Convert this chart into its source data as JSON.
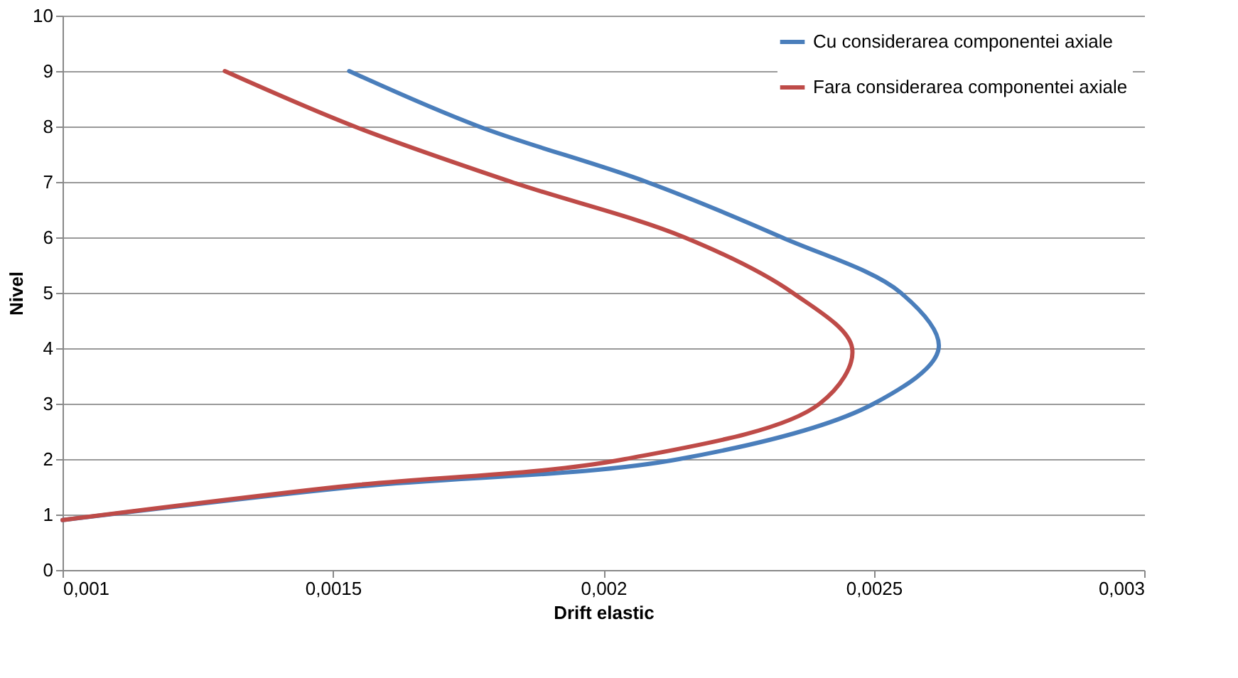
{
  "chart_data": {
    "type": "line",
    "xlabel": "Drift elastic",
    "ylabel": "Nivel",
    "xlim": [
      0.001,
      0.003
    ],
    "xticks": [
      {
        "value": 0.001,
        "label": "0,001"
      },
      {
        "value": 0.0015,
        "label": "0,0015"
      },
      {
        "value": 0.002,
        "label": "0,002"
      },
      {
        "value": 0.0025,
        "label": "0,0025"
      },
      {
        "value": 0.003,
        "label": "0,003"
      }
    ],
    "ylim": [
      0,
      10
    ],
    "yticks": [
      0,
      1,
      2,
      3,
      4,
      5,
      6,
      7,
      8,
      9,
      10
    ],
    "grid": "y",
    "legend": "top right",
    "marker": "none",
    "line_style": "solid",
    "series": [
      {
        "name": "Cu considerarea  componentei axiale",
        "color": "#4a7ebb",
        "x": [
          0.001,
          0.00154,
          0.00214,
          0.0025,
          0.00262,
          0.00255,
          0.00233,
          0.00208,
          0.00177,
          0.00153
        ],
        "values": [
          0.9,
          1.5,
          2,
          3,
          4,
          5,
          6,
          7,
          8,
          9
        ]
      },
      {
        "name": "Fara considerarea  componentei axiale",
        "color": "#be4b48",
        "x": [
          0.001,
          0.00151,
          0.00204,
          0.0024,
          0.00246,
          0.00235,
          0.00215,
          0.00183,
          0.00154,
          0.0013
        ],
        "values": [
          0.9,
          1.5,
          2,
          3,
          4,
          5,
          6,
          7,
          8,
          9
        ]
      }
    ]
  }
}
